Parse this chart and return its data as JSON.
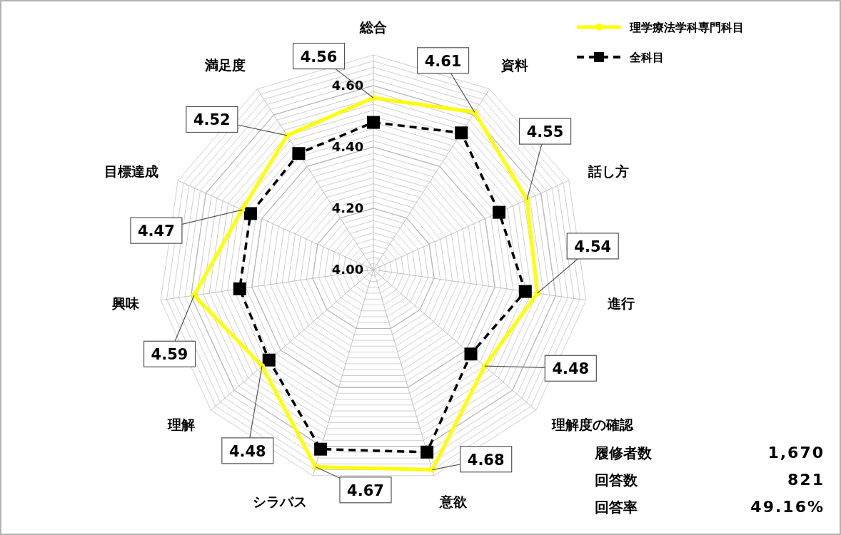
{
  "chart_data": {
    "type": "radar",
    "categories": [
      "総合",
      "資料",
      "話し方",
      "進行",
      "理解度の確認",
      "意欲",
      "シラバス",
      "理解",
      "興味",
      "目標達成",
      "満足度"
    ],
    "series": [
      {
        "name": "理学療法学科専門科目",
        "color": "#ffff00",
        "marker": "circle",
        "line_style": "solid",
        "values": [
          4.56,
          4.61,
          4.55,
          4.54,
          4.48,
          4.68,
          4.67,
          4.48,
          4.59,
          4.47,
          4.52
        ],
        "value_labels": [
          "4.56",
          "4.61",
          "4.55",
          "4.54",
          "4.48",
          "4.68",
          "4.67",
          "4.48",
          "4.59",
          "4.47",
          "4.52"
        ]
      },
      {
        "name": "全科目",
        "color": "#000000",
        "marker": "square",
        "line_style": "dashed",
        "values": [
          4.48,
          4.53,
          4.45,
          4.5,
          4.42,
          4.62,
          4.61,
          4.45,
          4.44,
          4.44,
          4.45
        ]
      }
    ],
    "ylim": [
      4.0,
      4.7
    ],
    "yticks": [
      {
        "value": 4.0,
        "label": "4.00"
      },
      {
        "value": 4.2,
        "label": "4.20"
      },
      {
        "value": 4.4,
        "label": "4.40"
      },
      {
        "value": 4.6,
        "label": "4.60"
      }
    ],
    "grid": true,
    "legend": "top right",
    "annotations": [
      "履修者数",
      "1,670",
      "回答数",
      "821",
      "回答率",
      "49.16%"
    ]
  }
}
